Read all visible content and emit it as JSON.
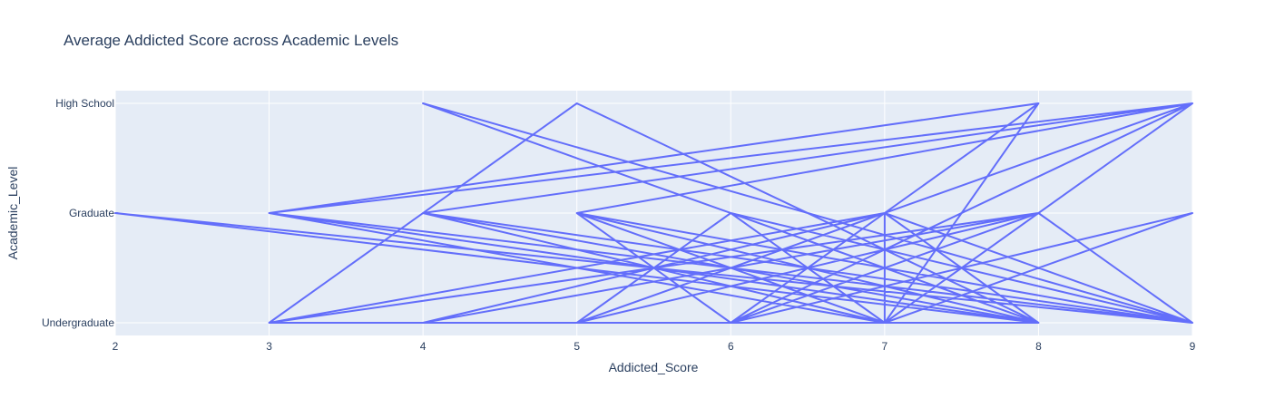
{
  "chart_data": {
    "type": "line",
    "title": "Average Addicted Score across Academic Levels",
    "xlabel": "Addicted_Score",
    "ylabel": "Academic_Level",
    "xlim": [
      2,
      9
    ],
    "x_ticks": [
      "2",
      "3",
      "4",
      "5",
      "6",
      "7",
      "8",
      "9"
    ],
    "categories": [
      "Undergraduate",
      "Graduate",
      "High School"
    ],
    "grid": true,
    "legend": "none",
    "colors": {
      "line": "#636efa",
      "plot_bg": "#e5ecf6",
      "grid": "#ffffff",
      "text": "#2a3f5f"
    },
    "series": [
      {
        "points": [
          {
            "x": 9,
            "y": "High School"
          },
          {
            "x": 3,
            "y": "Graduate"
          },
          {
            "x": 8,
            "y": "Undergraduate"
          },
          {
            "x": 4,
            "y": "Graduate"
          },
          {
            "x": 9,
            "y": "Undergraduate"
          },
          {
            "x": 5,
            "y": "Graduate"
          },
          {
            "x": 8,
            "y": "Undergraduate"
          },
          {
            "x": 2,
            "y": "Graduate"
          },
          {
            "x": 9,
            "y": "Undergraduate"
          },
          {
            "x": 7,
            "y": "Graduate"
          },
          {
            "x": 5,
            "y": "Undergraduate"
          },
          {
            "x": 9,
            "y": "High School"
          },
          {
            "x": 5,
            "y": "Graduate"
          },
          {
            "x": 7,
            "y": "Undergraduate"
          },
          {
            "x": 8,
            "y": "High School"
          },
          {
            "x": 6,
            "y": "Undergraduate"
          },
          {
            "x": 9,
            "y": "Graduate"
          },
          {
            "x": 7,
            "y": "Undergraduate"
          },
          {
            "x": 8,
            "y": "High School"
          },
          {
            "x": 3,
            "y": "Graduate"
          },
          {
            "x": 7,
            "y": "Undergraduate"
          },
          {
            "x": 6,
            "y": "Graduate"
          },
          {
            "x": 8,
            "y": "Undergraduate"
          },
          {
            "x": 4,
            "y": "Graduate"
          },
          {
            "x": 7,
            "y": "Undergraduate"
          },
          {
            "x": 8,
            "y": "Graduate"
          },
          {
            "x": 5,
            "y": "Undergraduate"
          },
          {
            "x": 6,
            "y": "Graduate"
          },
          {
            "x": 9,
            "y": "Undergraduate"
          },
          {
            "x": 7,
            "y": "Graduate"
          },
          {
            "x": 3,
            "y": "Undergraduate"
          },
          {
            "x": 5,
            "y": "High School"
          },
          {
            "x": 8,
            "y": "Undergraduate"
          },
          {
            "x": 7,
            "y": "Graduate"
          },
          {
            "x": 4,
            "y": "Undergraduate"
          },
          {
            "x": 8,
            "y": "Graduate"
          },
          {
            "x": 6,
            "y": "Undergraduate"
          },
          {
            "x": 9,
            "y": "High School"
          },
          {
            "x": 7,
            "y": "Undergraduate"
          },
          {
            "x": 5,
            "y": "Graduate"
          },
          {
            "x": 9,
            "y": "Undergraduate"
          },
          {
            "x": 3,
            "y": "Graduate"
          },
          {
            "x": 9,
            "y": "High School"
          },
          {
            "x": 6,
            "y": "Undergraduate"
          },
          {
            "x": 8,
            "y": "Graduate"
          },
          {
            "x": 7,
            "y": "Undergraduate"
          },
          {
            "x": 9,
            "y": "High School"
          },
          {
            "x": 4,
            "y": "Graduate"
          },
          {
            "x": 8,
            "y": "Undergraduate"
          },
          {
            "x": 3,
            "y": "Undergraduate"
          },
          {
            "x": 8,
            "y": "Graduate"
          },
          {
            "x": 5,
            "y": "Undergraduate"
          },
          {
            "x": 7,
            "y": "Graduate"
          },
          {
            "x": 7,
            "y": "Undergraduate"
          },
          {
            "x": 9,
            "y": "High School"
          },
          {
            "x": 6,
            "y": "Undergraduate"
          },
          {
            "x": 5,
            "y": "Graduate"
          },
          {
            "x": 8,
            "y": "Undergraduate"
          },
          {
            "x": 4,
            "y": "High School"
          },
          {
            "x": 9,
            "y": "Undergraduate"
          },
          {
            "x": 8,
            "y": "Graduate"
          },
          {
            "x": 4,
            "y": "Undergraduate"
          },
          {
            "x": 7,
            "y": "Graduate"
          },
          {
            "x": 9,
            "y": "Undergraduate"
          }
        ]
      }
    ]
  }
}
